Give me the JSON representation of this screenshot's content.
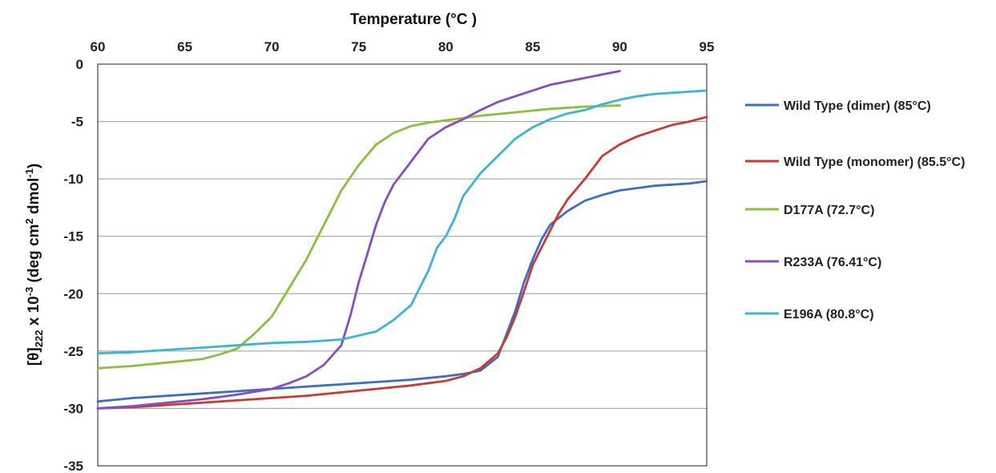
{
  "chart_data": {
    "type": "line",
    "xlabel": "Temperature (°C )",
    "ylabel_parts": {
      "prefix": "[θ]",
      "subscript": "222",
      "middle": " x 10",
      "superscript": "-3",
      "suffix": " (deg cm",
      "sup2": "2",
      "suffix2": " dmol",
      "sup3": "-1",
      "end": ")"
    },
    "xlim": [
      60,
      95
    ],
    "ylim": [
      -35,
      0
    ],
    "x_ticks": [
      "60",
      "65",
      "70",
      "75",
      "80",
      "85",
      "90",
      "95"
    ],
    "y_ticks": [
      "0",
      "-5",
      "-10",
      "-15",
      "-20",
      "-25",
      "-30",
      "-35"
    ],
    "x_axis_position": "top",
    "grid": "horizontal",
    "legend_position": "right",
    "series": [
      {
        "name": "Wild Type (dimer) (85°C)",
        "color": "#3a6fc4",
        "points": [
          [
            60,
            -29.4
          ],
          [
            62,
            -29.1
          ],
          [
            64,
            -28.9
          ],
          [
            66,
            -28.7
          ],
          [
            68,
            -28.5
          ],
          [
            70,
            -28.3
          ],
          [
            72,
            -28.1
          ],
          [
            74,
            -27.9
          ],
          [
            76,
            -27.7
          ],
          [
            78,
            -27.5
          ],
          [
            80,
            -27.2
          ],
          [
            81,
            -27.0
          ],
          [
            82,
            -26.7
          ],
          [
            83,
            -25.5
          ],
          [
            83.5,
            -23.5
          ],
          [
            84,
            -21.5
          ],
          [
            84.5,
            -19.0
          ],
          [
            85,
            -17.0
          ],
          [
            85.5,
            -15.3
          ],
          [
            86,
            -14.0
          ],
          [
            87,
            -12.8
          ],
          [
            88,
            -11.9
          ],
          [
            89,
            -11.4
          ],
          [
            90,
            -11.0
          ],
          [
            91,
            -10.8
          ],
          [
            92,
            -10.6
          ],
          [
            93,
            -10.5
          ],
          [
            94,
            -10.4
          ],
          [
            95,
            -10.2
          ]
        ]
      },
      {
        "name": "Wild Type (monomer) (85.5°C)",
        "color": "#c83b35",
        "points": [
          [
            60,
            -30.0
          ],
          [
            62,
            -29.9
          ],
          [
            64,
            -29.7
          ],
          [
            66,
            -29.5
          ],
          [
            68,
            -29.3
          ],
          [
            70,
            -29.1
          ],
          [
            72,
            -28.9
          ],
          [
            74,
            -28.6
          ],
          [
            76,
            -28.3
          ],
          [
            78,
            -28.0
          ],
          [
            80,
            -27.6
          ],
          [
            81,
            -27.2
          ],
          [
            82,
            -26.5
          ],
          [
            83,
            -25.2
          ],
          [
            83.5,
            -23.8
          ],
          [
            84,
            -22.0
          ],
          [
            84.5,
            -19.8
          ],
          [
            85,
            -17.5
          ],
          [
            85.5,
            -16.0
          ],
          [
            86,
            -14.5
          ],
          [
            86.5,
            -13.0
          ],
          [
            87,
            -11.8
          ],
          [
            88,
            -10.0
          ],
          [
            89,
            -8.0
          ],
          [
            90,
            -7.0
          ],
          [
            91,
            -6.3
          ],
          [
            92,
            -5.8
          ],
          [
            93,
            -5.3
          ],
          [
            94,
            -5.0
          ],
          [
            95,
            -4.6
          ]
        ]
      },
      {
        "name": "D177A (72.7°C)",
        "color": "#8cbf3f",
        "points": [
          [
            60,
            -26.5
          ],
          [
            62,
            -26.3
          ],
          [
            64,
            -26.0
          ],
          [
            66,
            -25.7
          ],
          [
            67,
            -25.3
          ],
          [
            68,
            -24.8
          ],
          [
            69,
            -23.5
          ],
          [
            70,
            -22.0
          ],
          [
            71,
            -19.5
          ],
          [
            72,
            -17.0
          ],
          [
            72.5,
            -15.5
          ],
          [
            73,
            -14.0
          ],
          [
            74,
            -11.0
          ],
          [
            75,
            -8.8
          ],
          [
            76,
            -7.0
          ],
          [
            77,
            -6.0
          ],
          [
            78,
            -5.4
          ],
          [
            79,
            -5.1
          ],
          [
            80,
            -4.9
          ],
          [
            81,
            -4.7
          ],
          [
            82,
            -4.5
          ],
          [
            84,
            -4.2
          ],
          [
            86,
            -3.9
          ],
          [
            88,
            -3.7
          ],
          [
            90,
            -3.6
          ]
        ]
      },
      {
        "name": "R233A (76.41°C)",
        "color": "#8a4dbf",
        "points": [
          [
            60,
            -30.0
          ],
          [
            62,
            -29.8
          ],
          [
            64,
            -29.5
          ],
          [
            66,
            -29.2
          ],
          [
            68,
            -28.8
          ],
          [
            70,
            -28.3
          ],
          [
            71,
            -27.8
          ],
          [
            72,
            -27.2
          ],
          [
            73,
            -26.2
          ],
          [
            74,
            -24.5
          ],
          [
            74.5,
            -22.0
          ],
          [
            75,
            -19.0
          ],
          [
            75.5,
            -16.5
          ],
          [
            76,
            -14.0
          ],
          [
            76.5,
            -12.0
          ],
          [
            77,
            -10.5
          ],
          [
            78,
            -8.5
          ],
          [
            79,
            -6.5
          ],
          [
            80,
            -5.5
          ],
          [
            81,
            -4.8
          ],
          [
            82,
            -4.0
          ],
          [
            83,
            -3.3
          ],
          [
            84,
            -2.8
          ],
          [
            85,
            -2.3
          ],
          [
            86,
            -1.8
          ],
          [
            87,
            -1.5
          ],
          [
            88,
            -1.2
          ],
          [
            89,
            -0.9
          ],
          [
            90,
            -0.6
          ]
        ]
      },
      {
        "name": "E196A (80.8°C)",
        "color": "#3bb5d6",
        "points": [
          [
            60,
            -25.2
          ],
          [
            62,
            -25.1
          ],
          [
            64,
            -24.9
          ],
          [
            66,
            -24.7
          ],
          [
            68,
            -24.5
          ],
          [
            70,
            -24.3
          ],
          [
            72,
            -24.2
          ],
          [
            74,
            -24.0
          ],
          [
            76,
            -23.3
          ],
          [
            77,
            -22.3
          ],
          [
            78,
            -21.0
          ],
          [
            78.5,
            -19.5
          ],
          [
            79,
            -18.0
          ],
          [
            79.5,
            -16.0
          ],
          [
            80,
            -15.0
          ],
          [
            80.5,
            -13.5
          ],
          [
            81,
            -11.5
          ],
          [
            82,
            -9.5
          ],
          [
            83,
            -8.0
          ],
          [
            84,
            -6.5
          ],
          [
            85,
            -5.5
          ],
          [
            86,
            -4.8
          ],
          [
            87,
            -4.3
          ],
          [
            88,
            -4.0
          ],
          [
            89,
            -3.5
          ],
          [
            90,
            -3.1
          ],
          [
            91,
            -2.8
          ],
          [
            92,
            -2.6
          ],
          [
            93,
            -2.5
          ],
          [
            94,
            -2.4
          ],
          [
            95,
            -2.3
          ]
        ]
      }
    ]
  }
}
